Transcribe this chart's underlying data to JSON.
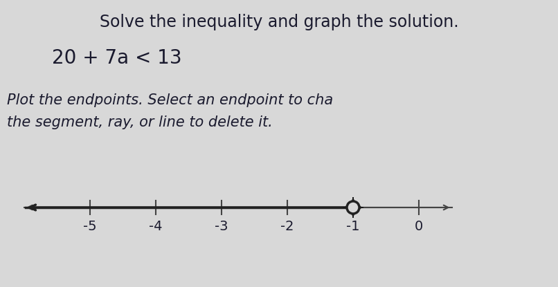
{
  "title_line1": "Solve the inequality and graph the solution.",
  "equation": "20 + 7a < 13",
  "instruction_line1": "Plot the endpoints. Select an endpoint to cha",
  "instruction_line2": "the segment, ray, or line to delete it.",
  "solution_point": -1,
  "open_circle": true,
  "ray_direction": "left",
  "number_line_ticks": [
    -5,
    -4,
    -3,
    -2,
    -1,
    0
  ],
  "number_line_xlim": [
    -6.5,
    1.0
  ],
  "background_color": "#d8d8d8",
  "text_color": "#1a1a2e",
  "line_color": "#444444",
  "ray_color": "#222222",
  "circle_fill": "#d8d8d8",
  "circle_edge": "#222222",
  "title_fontsize": 17,
  "equation_fontsize": 20,
  "instruction_fontsize": 15
}
